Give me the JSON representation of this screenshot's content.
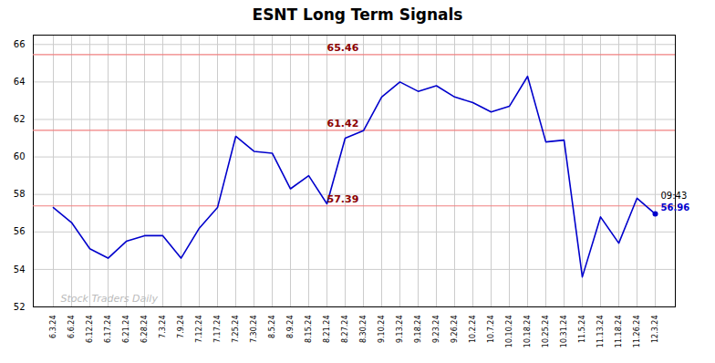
{
  "chart_data": {
    "type": "line",
    "title": "ESNT Long Term Signals",
    "color": "#0000cc",
    "categories": [
      "6.3.24",
      "6.6.24",
      "6.12.24",
      "6.17.24",
      "6.21.24",
      "6.28.24",
      "7.3.24",
      "7.9.24",
      "7.12.24",
      "7.17.24",
      "7.25.24",
      "7.30.24",
      "8.5.24",
      "8.9.24",
      "8.15.24",
      "8.21.24",
      "8.27.24",
      "8.30.24",
      "9.10.24",
      "9.13.24",
      "9.18.24",
      "9.23.24",
      "9.26.24",
      "10.2.24",
      "10.7.24",
      "10.10.24",
      "10.18.24",
      "10.25.24",
      "10.31.24",
      "11.5.24",
      "11.13.24",
      "11.18.24",
      "11.26.24",
      "12.3.24"
    ],
    "values": [
      57.3,
      56.5,
      55.1,
      54.6,
      55.5,
      55.8,
      55.8,
      54.6,
      56.2,
      57.3,
      61.1,
      60.3,
      60.2,
      58.3,
      59.0,
      57.5,
      61.0,
      61.4,
      63.2,
      64.0,
      63.5,
      63.8,
      63.2,
      62.9,
      62.4,
      62.7,
      64.3,
      60.8,
      60.9,
      53.6,
      56.8,
      55.4,
      57.8,
      56.96
    ],
    "ylim": [
      52,
      66.5
    ],
    "yticks": [
      52,
      54,
      56,
      58,
      60,
      62,
      64,
      66
    ],
    "grid": true,
    "hlines": [
      {
        "value": 65.46,
        "label": "65.46",
        "color": "#f08080",
        "label_color": "#8b0000"
      },
      {
        "value": 61.42,
        "label": "61.42",
        "color": "#f08080",
        "label_color": "#8b0000"
      },
      {
        "value": 57.39,
        "label": "57.39",
        "color": "#f08080",
        "label_color": "#8b0000"
      }
    ],
    "annotations": [
      {
        "text": "Stock Traders Daily",
        "color": "#bbbbbb"
      },
      {
        "text": "09:43",
        "color": "#000000"
      },
      {
        "text": "56.96",
        "color": "#0000cc"
      }
    ]
  }
}
